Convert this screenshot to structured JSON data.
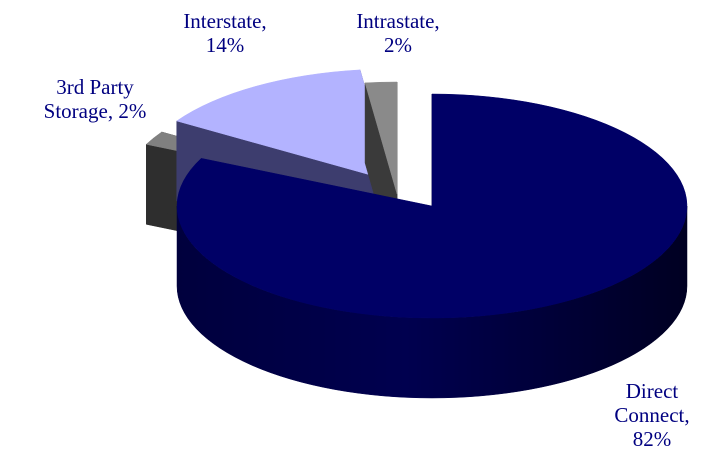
{
  "chart_data": {
    "type": "pie",
    "title": "",
    "series": [
      {
        "category": "Direct Connect",
        "value": 82,
        "label_lines": [
          "Direct",
          "Connect,",
          "82%"
        ],
        "color": "#000066",
        "side": "#000033"
      },
      {
        "category": "3rd Party Storage",
        "value": 2,
        "label_lines": [
          "3rd Party",
          "Storage, 2%"
        ],
        "color": "#808080",
        "side": "#2e2e2e"
      },
      {
        "category": "Interstate",
        "value": 14,
        "label_lines": [
          "Interstate,",
          "14%"
        ],
        "color": "#b3b3ff",
        "side": "#3d3d6e"
      },
      {
        "category": "Intrastate",
        "value": 2,
        "label_lines": [
          "Intrastate,",
          "2%"
        ],
        "color": "#8a8a8a",
        "side": "#3a3a3a"
      }
    ],
    "style": "3d-exploded",
    "label_color": "#000080",
    "legend": "none"
  }
}
